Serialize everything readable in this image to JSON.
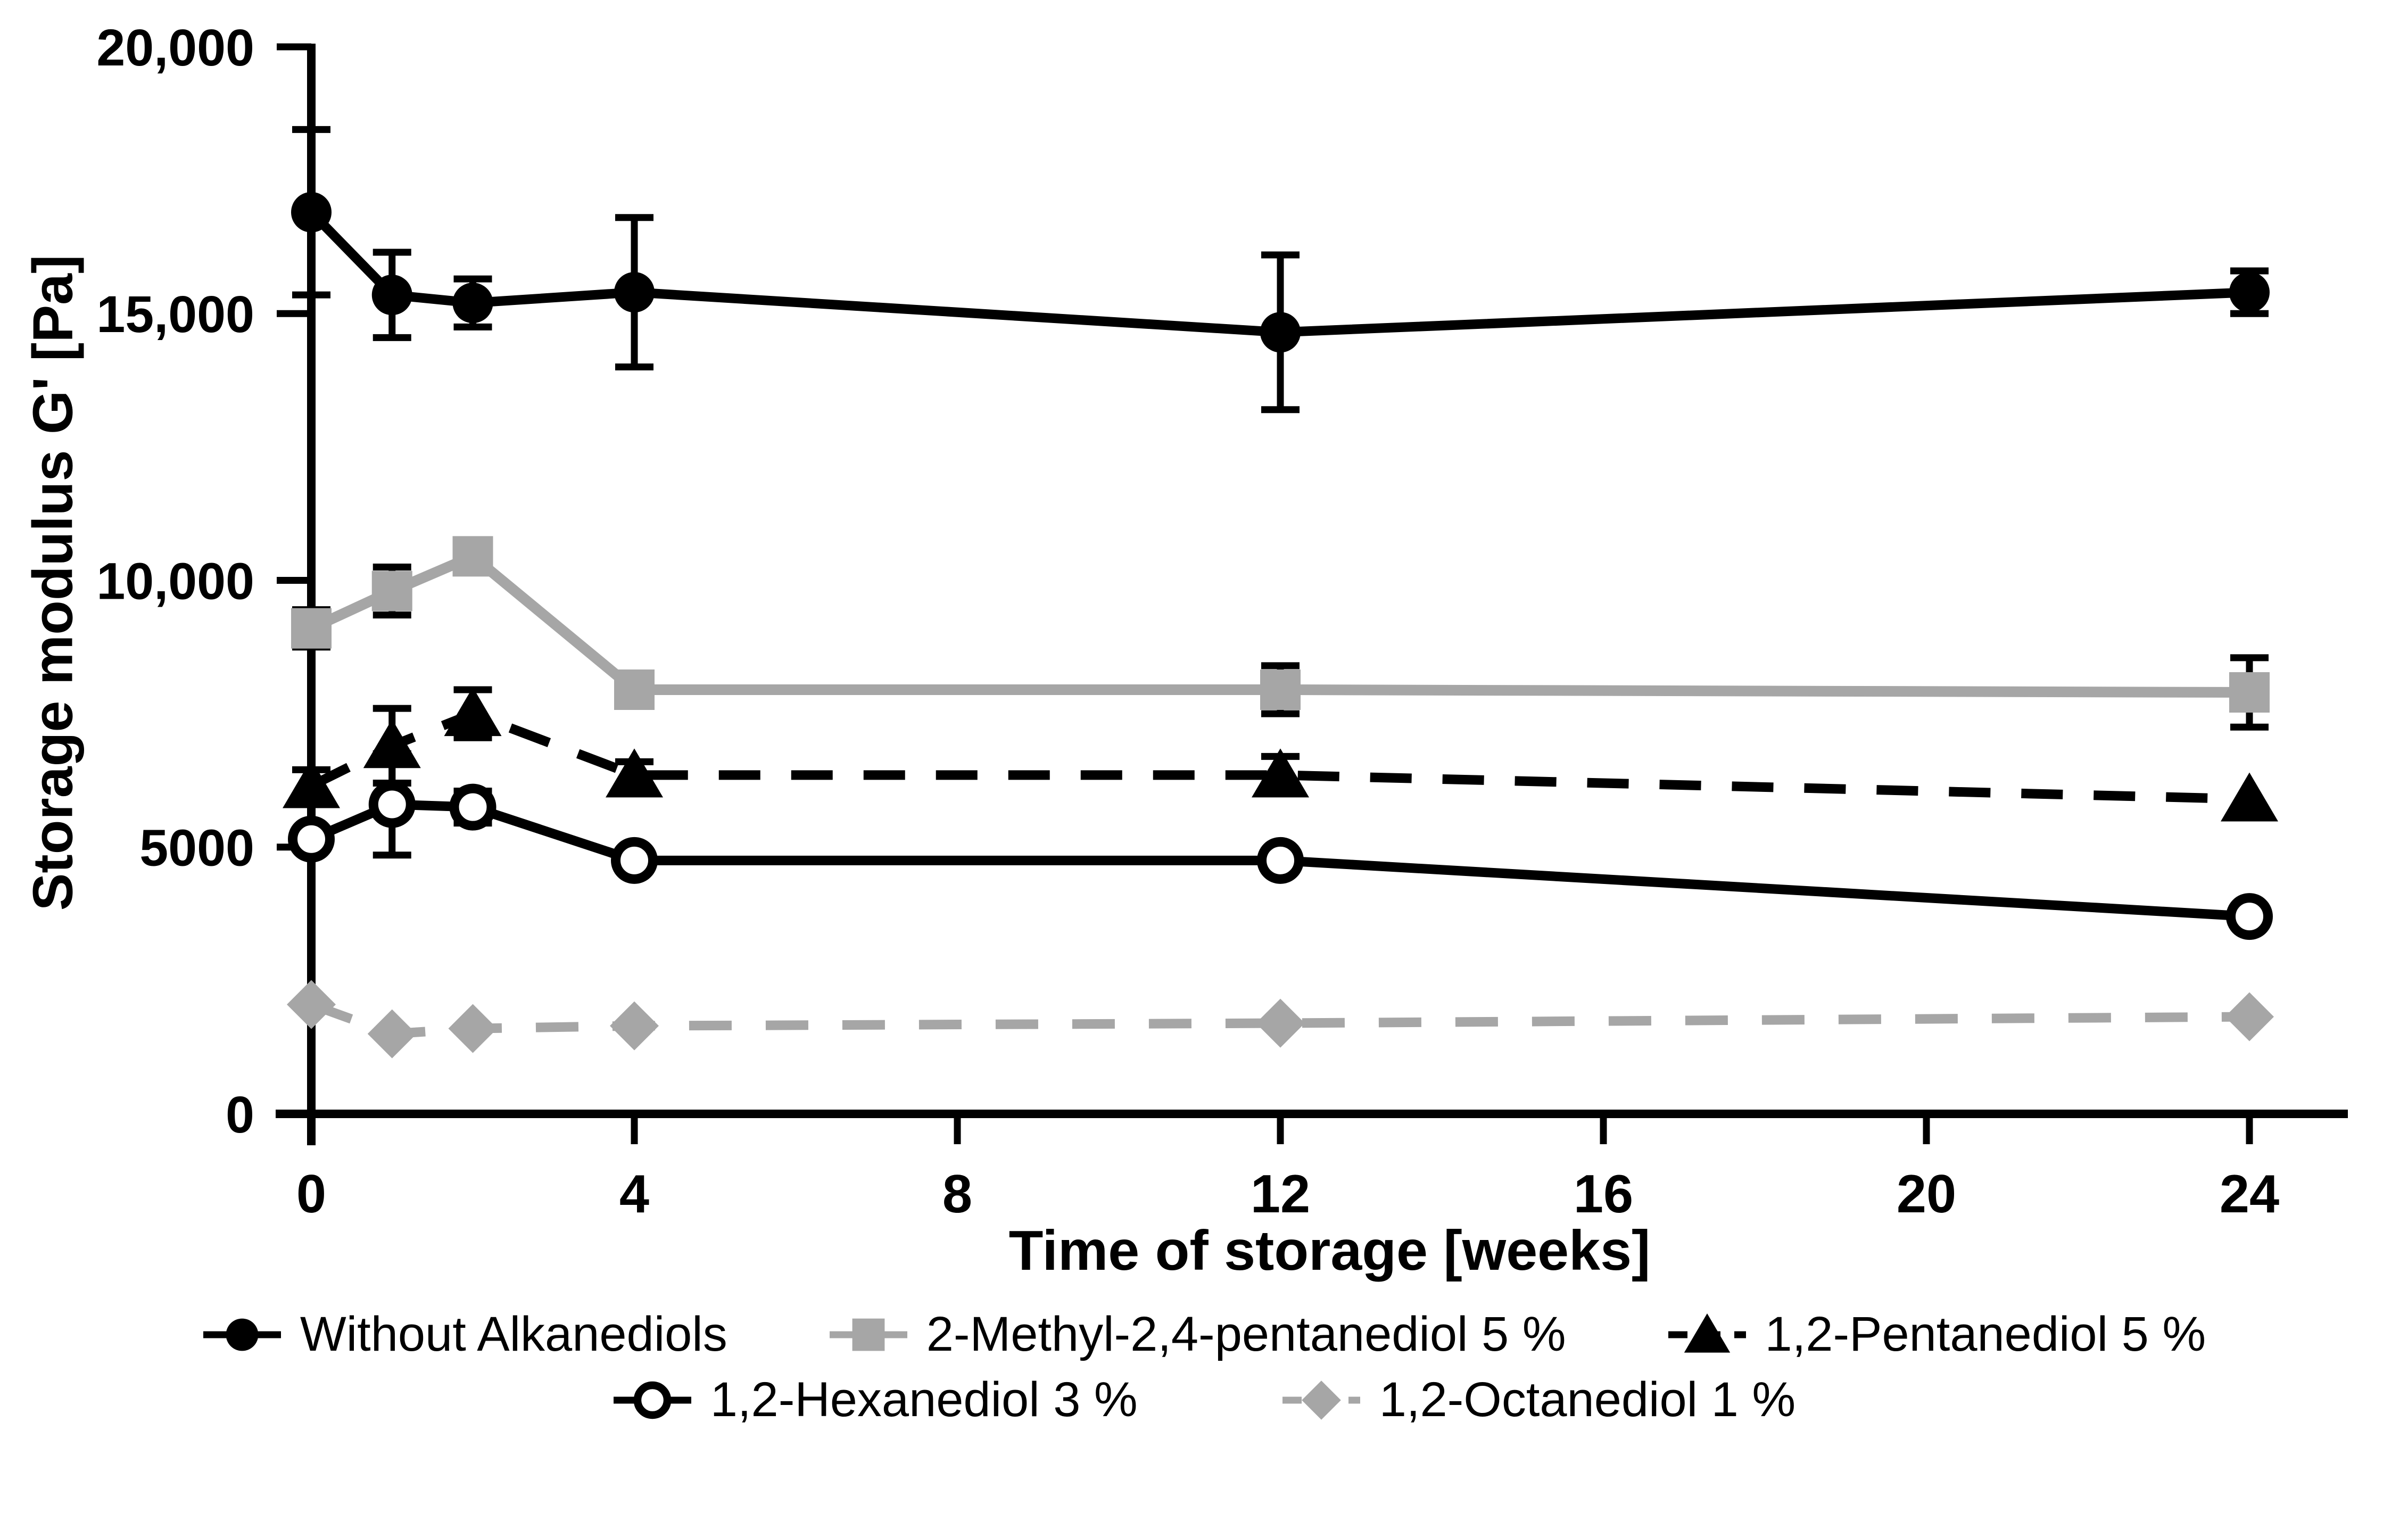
{
  "chart_data": {
    "type": "line",
    "title": "",
    "xlabel": "Time of storage [weeks]",
    "ylabel": "Storage modulus G' [Pa]",
    "x_weeks": [
      0,
      1,
      2,
      4,
      12,
      24
    ],
    "xlim": [
      0,
      25.2
    ],
    "ylim": [
      0,
      20000
    ],
    "grid": false,
    "legend_position": "bottom",
    "xticks": [
      {
        "value": 0,
        "label": "0"
      },
      {
        "value": 4,
        "label": "4"
      },
      {
        "value": 8,
        "label": "8"
      },
      {
        "value": 12,
        "label": "12"
      },
      {
        "value": 16,
        "label": "16"
      },
      {
        "value": 20,
        "label": "20"
      },
      {
        "value": 24,
        "label": "24"
      }
    ],
    "yticks": [
      {
        "value": 0,
        "label": "0"
      },
      {
        "value": 5000,
        "label": "5000"
      },
      {
        "value": 10000,
        "label": "10,000"
      },
      {
        "value": 15000,
        "label": "15,000"
      },
      {
        "value": 20000,
        "label": "20,000"
      }
    ],
    "error_bar_color": "#000000",
    "series": [
      {
        "name": "Without Alkanediols",
        "color": "#000000",
        "line": "solid",
        "marker": "filled-circle",
        "values": [
          16900,
          15350,
          15200,
          15400,
          14650,
          15400
        ],
        "errors": [
          1550,
          800,
          450,
          1400,
          1450,
          400
        ]
      },
      {
        "name": "2-Methyl-2,4-pentanediol 5 %",
        "color": "#a6a6a6",
        "line": "solid",
        "marker": "filled-square",
        "values": [
          9100,
          9800,
          10450,
          7950,
          7950,
          7900
        ],
        "errors": [
          350,
          450,
          0,
          250,
          450,
          650
        ]
      },
      {
        "name": "1,2-Pentanediol 5 %",
        "color": "#000000",
        "line": "dashed",
        "marker": "filled-triangle",
        "values": [
          6150,
          6900,
          7500,
          6350,
          6350,
          5900
        ],
        "errors": [
          300,
          700,
          450,
          250,
          350,
          0
        ]
      },
      {
        "name": "1,2-Hexanediol 3 %",
        "color": "#000000",
        "line": "solid",
        "marker": "open-circle",
        "values": [
          5150,
          5800,
          5750,
          4750,
          4750,
          3700
        ],
        "errors": [
          0,
          950,
          300,
          150,
          0,
          0
        ]
      },
      {
        "name": "1,2-Octanediol 1 %",
        "color": "#a6a6a6",
        "line": "dashed",
        "marker": "filled-diamond",
        "values": [
          2050,
          1500,
          1600,
          1650,
          1700,
          1820
        ],
        "errors": [
          0,
          0,
          0,
          0,
          0,
          0
        ]
      }
    ]
  }
}
